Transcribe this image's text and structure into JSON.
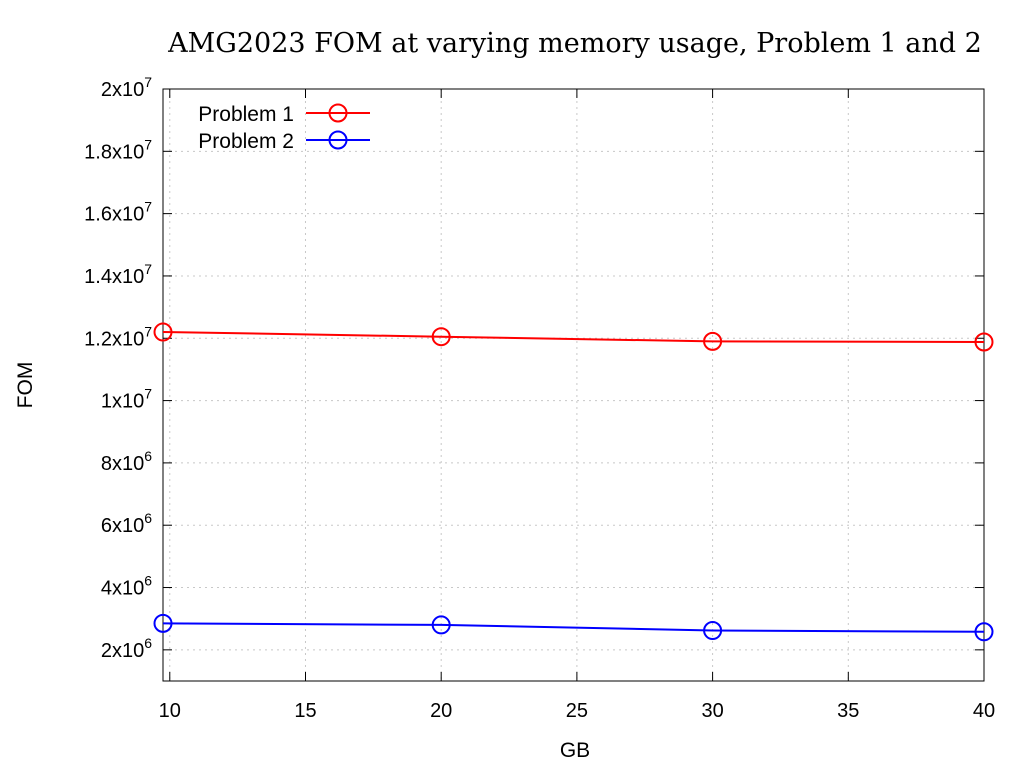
{
  "chart_data": {
    "type": "line",
    "title": "AMG2023 FOM at varying memory usage, Problem 1 and 2",
    "xlabel": "GB",
    "ylabel": "FOM",
    "xlim": [
      9.75,
      40
    ],
    "ylim": [
      1000000,
      20000000
    ],
    "x_ticks": [
      {
        "value": 10,
        "label": "10"
      },
      {
        "value": 15,
        "label": "15"
      },
      {
        "value": 20,
        "label": "20"
      },
      {
        "value": 25,
        "label": "25"
      },
      {
        "value": 30,
        "label": "30"
      },
      {
        "value": 35,
        "label": "35"
      },
      {
        "value": 40,
        "label": "40"
      }
    ],
    "y_ticks": [
      {
        "value": 2000000,
        "mantissa": "2x10",
        "exp": "6"
      },
      {
        "value": 4000000,
        "mantissa": "4x10",
        "exp": "6"
      },
      {
        "value": 6000000,
        "mantissa": "6x10",
        "exp": "6"
      },
      {
        "value": 8000000,
        "mantissa": "8x10",
        "exp": "6"
      },
      {
        "value": 10000000,
        "mantissa": "1x10",
        "exp": "7"
      },
      {
        "value": 12000000,
        "mantissa": "1.2x10",
        "exp": "7"
      },
      {
        "value": 14000000,
        "mantissa": "1.4x10",
        "exp": "7"
      },
      {
        "value": 16000000,
        "mantissa": "1.6x10",
        "exp": "7"
      },
      {
        "value": 18000000,
        "mantissa": "1.8x10",
        "exp": "7"
      },
      {
        "value": 20000000,
        "mantissa": "2x10",
        "exp": "7"
      }
    ],
    "grid": true,
    "legend_position": "top-left",
    "series": [
      {
        "name": "Problem 1",
        "color": "#ff0000",
        "marker": "open-circle",
        "x": [
          9.75,
          20,
          30,
          40
        ],
        "y": [
          12200000,
          12050000,
          11900000,
          11880000
        ]
      },
      {
        "name": "Problem 2",
        "color": "#0000ff",
        "marker": "open-circle",
        "x": [
          9.75,
          20,
          30,
          40
        ],
        "y": [
          2850000,
          2800000,
          2620000,
          2580000
        ]
      }
    ]
  }
}
